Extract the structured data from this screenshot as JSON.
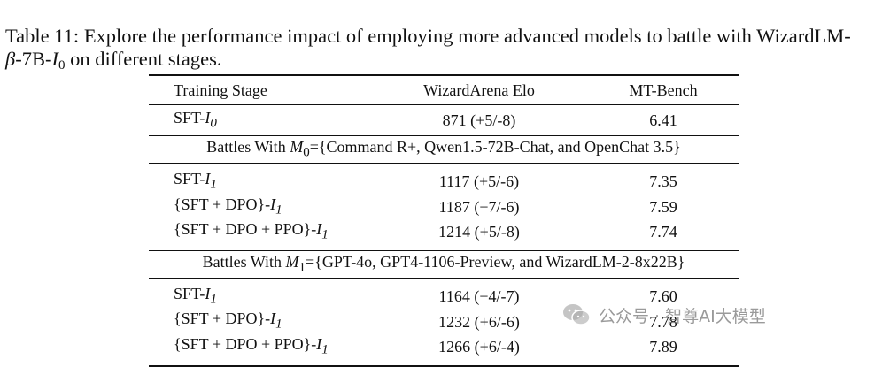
{
  "caption": {
    "prefix": "Table 11: Explore the performance impact of employing more advanced models to battle with WizardLM-",
    "beta": "β",
    "mid": "-7B-",
    "I": "I",
    "sub0": "0",
    "suffix": " on different stages."
  },
  "table": {
    "headers": [
      "Training Stage",
      "WizardArena Elo",
      "MT-Bench"
    ],
    "base_row": {
      "stage": "SFT-",
      "stage_var": "I",
      "stage_sub": "0",
      "elo": "871 (+5/-8)",
      "mt": "6.41"
    },
    "groups": [
      {
        "label_prefix": "Battles With ",
        "label_var": "M",
        "label_sub": "0",
        "label_suffix": "={Command R+, Qwen1.5-72B-Chat, and OpenChat 3.5}",
        "rows": [
          {
            "stage": "SFT-",
            "stage_var": "I",
            "stage_sub": "1",
            "elo": "1117 (+5/-6)",
            "mt": "7.35"
          },
          {
            "stage": "{SFT + DPO}-",
            "stage_var": "I",
            "stage_sub": "1",
            "elo": "1187 (+7/-6)",
            "mt": "7.59"
          },
          {
            "stage": "{SFT + DPO + PPO}-",
            "stage_var": "I",
            "stage_sub": "1",
            "elo": "1214 (+5/-8)",
            "mt": "7.74"
          }
        ]
      },
      {
        "label_prefix": "Battles With ",
        "label_var": "M",
        "label_sub": "1",
        "label_suffix": "={GPT-4o, GPT4-1106-Preview, and WizardLM-2-8x22B}",
        "rows": [
          {
            "stage": "SFT-",
            "stage_var": "I",
            "stage_sub": "1",
            "elo": "1164 (+4/-7)",
            "mt": "7.60"
          },
          {
            "stage": "{SFT + DPO}-",
            "stage_var": "I",
            "stage_sub": "1",
            "elo": "1232 (+6/-6)",
            "mt": "7.78"
          },
          {
            "stage": "{SFT + DPO + PPO}-",
            "stage_var": "I",
            "stage_sub": "1",
            "elo": "1266 (+6/-4)",
            "mt": "7.89"
          }
        ]
      }
    ]
  },
  "watermark": {
    "text": "公众号 · 智尊AI大模型",
    "icon": "wechat-icon"
  }
}
